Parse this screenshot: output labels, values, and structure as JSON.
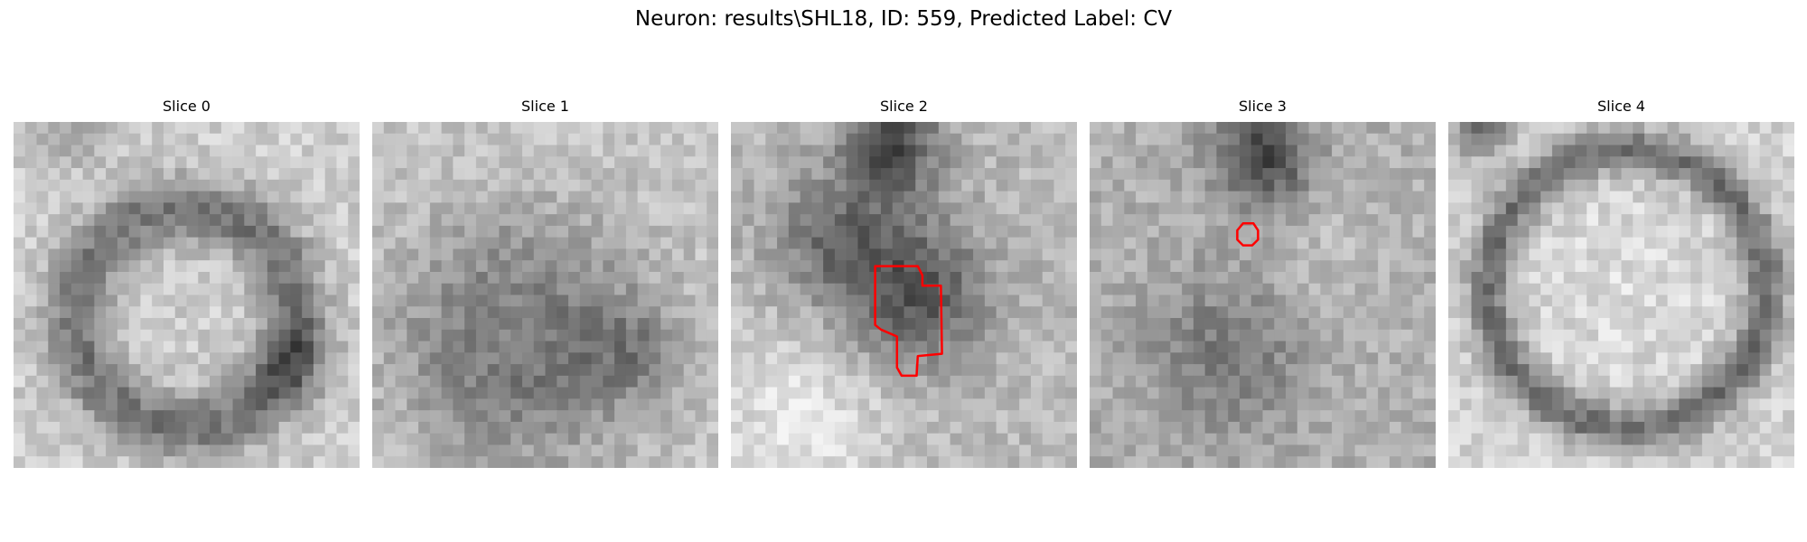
{
  "figure": {
    "title": "Neuron: results\\SHL18, ID: 559, Predicted Label: CV"
  },
  "panels": [
    {
      "label": "Slice 0",
      "content": "annular",
      "overlay": false
    },
    {
      "label": "Slice 1",
      "content": "dark-blob",
      "overlay": false
    },
    {
      "label": "Slice 2",
      "content": "dark-diag",
      "overlay": true
    },
    {
      "label": "Slice 3",
      "content": "faint",
      "overlay": true
    },
    {
      "label": "Slice 4",
      "content": "ring",
      "overlay": false
    }
  ],
  "colors": {
    "contour": "#ff0000",
    "background": "#ffffff"
  }
}
